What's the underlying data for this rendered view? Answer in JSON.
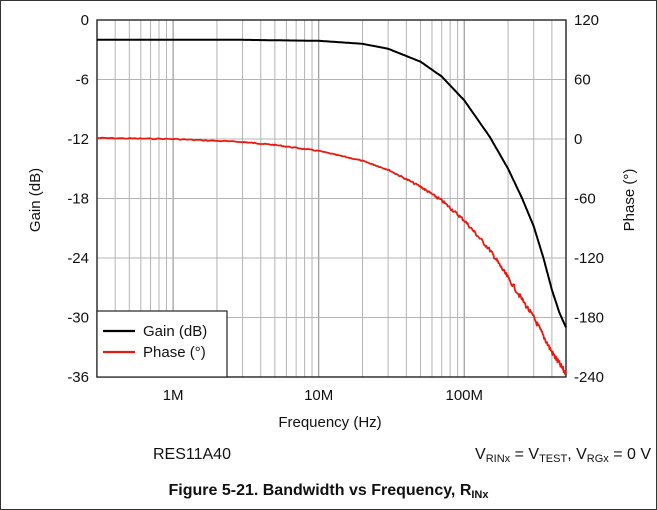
{
  "chart_data": {
    "type": "line",
    "xlabel": "Frequency (Hz)",
    "ylabel": "Gain (dB)",
    "y2label": "Phase (°)",
    "x_scale": "log",
    "xlim": [
      300000,
      500000000
    ],
    "x_ticks": [
      1000000,
      10000000,
      100000000
    ],
    "x_tick_labels": [
      "1M",
      "10M",
      "100M"
    ],
    "ylim": [
      -36,
      0
    ],
    "y_ticks": [
      0,
      -6,
      -12,
      -18,
      -24,
      -30,
      -36
    ],
    "y_tick_labels": [
      "0",
      "-6",
      "-12",
      "-18",
      "-24",
      "-30",
      "-36"
    ],
    "y2lim": [
      -240,
      120
    ],
    "y2_ticks": [
      120,
      60,
      0,
      -60,
      -120,
      -180,
      -240
    ],
    "y2_tick_labels": [
      "120",
      "60",
      "0",
      "-60",
      "-120",
      "-180",
      "-240"
    ],
    "grid": true,
    "legend_position": "bottom-left",
    "series": [
      {
        "name": "Gain (dB)",
        "axis": "left",
        "color": "#000000",
        "x": [
          300000,
          1000000,
          3000000,
          10000000,
          20000000,
          30000000,
          50000000,
          70000000,
          100000000,
          150000000,
          200000000,
          250000000,
          300000000,
          350000000,
          400000000,
          450000000,
          500000000
        ],
        "y": [
          -2.0,
          -2.0,
          -2.0,
          -2.1,
          -2.4,
          -2.9,
          -4.2,
          -5.7,
          -8.1,
          -11.8,
          -15.0,
          -18.0,
          -20.8,
          -24.0,
          -27.2,
          -29.5,
          -31.0
        ]
      },
      {
        "name": "Phase (°)",
        "axis": "right",
        "color": "#e8190f",
        "x": [
          300000,
          1000000,
          3000000,
          5000000,
          10000000,
          20000000,
          30000000,
          50000000,
          70000000,
          100000000,
          150000000,
          200000000,
          300000000,
          400000000,
          500000000
        ],
        "y": [
          1,
          0,
          -3,
          -6,
          -12,
          -22,
          -31,
          -48,
          -62,
          -82,
          -112,
          -140,
          -180,
          -215,
          -237
        ]
      }
    ],
    "legend": [
      {
        "label": "Gain (dB)",
        "color": "#000000"
      },
      {
        "label": "Phase (°)",
        "color": "#e8190f"
      }
    ]
  },
  "notes": {
    "device": "RES11A40",
    "condition_prefix": "V",
    "condition_sub1": "RINx",
    "condition_mid1": " = V",
    "condition_sub2": "TEST",
    "condition_mid2": ", V",
    "condition_sub3": "RGx",
    "condition_suffix": " = 0 V"
  },
  "caption": {
    "text": "Figure 5-21. Bandwidth vs Frequency, R",
    "sub": "INx"
  }
}
